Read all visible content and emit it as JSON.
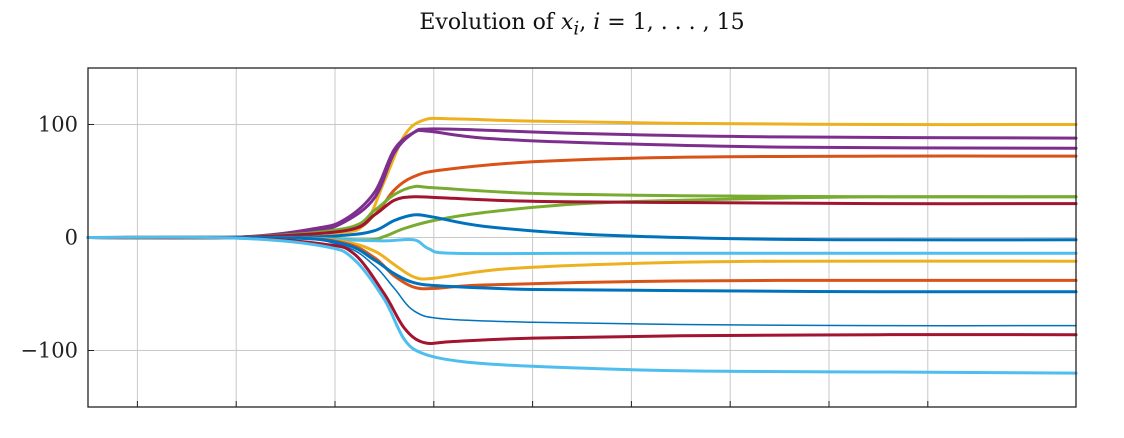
{
  "chart_data": {
    "type": "line",
    "title": "Evolution of x_i, i = 1, …, 15",
    "title_parts": {
      "prefix": "Evolution of ",
      "var": "x",
      "sub": "i",
      "sep": ", ",
      "range_var": "i",
      "range_rest": " = 1, . . . , 15"
    },
    "xlabel": "",
    "ylabel": "",
    "xlim": [
      0,
      10
    ],
    "ylim": [
      -150,
      150
    ],
    "yticks": [
      100,
      0,
      -100
    ],
    "ytick_labels": [
      "100",
      "0",
      "−100"
    ],
    "xticks": [
      0.5,
      1.5,
      2.5,
      3.5,
      4.5,
      5.5,
      6.5,
      7.5,
      8.5
    ],
    "xtick_labels": [],
    "grid": true,
    "legend": "none",
    "series": [
      {
        "color": "#EDB120",
        "width": 3,
        "values": [
          [
            0,
            0
          ],
          [
            1.5,
            0.3
          ],
          [
            2.5,
            4
          ],
          [
            2.8,
            12
          ],
          [
            3.0,
            50
          ],
          [
            3.2,
            90
          ],
          [
            3.4,
            104
          ],
          [
            3.7,
            105
          ],
          [
            4.5,
            103
          ],
          [
            6,
            101
          ],
          [
            8,
            100
          ],
          [
            10,
            100
          ]
        ]
      },
      {
        "color": "#7E2F8E",
        "width": 3,
        "values": [
          [
            0,
            0
          ],
          [
            1.5,
            0.3
          ],
          [
            2.3,
            6
          ],
          [
            2.6,
            14
          ],
          [
            2.9,
            35
          ],
          [
            3.1,
            75
          ],
          [
            3.3,
            93
          ],
          [
            3.45,
            96
          ],
          [
            4,
            95
          ],
          [
            5,
            92
          ],
          [
            7,
            89
          ],
          [
            10,
            88
          ]
        ]
      },
      {
        "color": "#7E2F8E",
        "width": 3,
        "values": [
          [
            0,
            0
          ],
          [
            1.5,
            0.3
          ],
          [
            2.3,
            8
          ],
          [
            2.6,
            16
          ],
          [
            2.9,
            40
          ],
          [
            3.1,
            78
          ],
          [
            3.3,
            93
          ],
          [
            3.45,
            94
          ],
          [
            4,
            88
          ],
          [
            5,
            84
          ],
          [
            7,
            80
          ],
          [
            10,
            79
          ]
        ]
      },
      {
        "color": "#D95319",
        "width": 3,
        "values": [
          [
            0,
            0
          ],
          [
            1.5,
            0.2
          ],
          [
            2.6,
            6
          ],
          [
            2.9,
            20
          ],
          [
            3.1,
            42
          ],
          [
            3.3,
            54
          ],
          [
            3.6,
            60
          ],
          [
            4.5,
            67
          ],
          [
            6,
            71
          ],
          [
            8,
            72
          ],
          [
            10,
            72
          ]
        ]
      },
      {
        "color": "#77AC30",
        "width": 3,
        "values": [
          [
            0,
            0
          ],
          [
            1.5,
            0.2
          ],
          [
            2.6,
            8
          ],
          [
            2.9,
            24
          ],
          [
            3.1,
            38
          ],
          [
            3.3,
            45
          ],
          [
            3.5,
            44
          ],
          [
            4.5,
            39
          ],
          [
            6,
            37
          ],
          [
            8,
            36
          ],
          [
            10,
            36
          ]
        ]
      },
      {
        "color": "#77AC30",
        "width": 3,
        "values": [
          [
            0,
            0
          ],
          [
            2.0,
            0.1
          ],
          [
            2.8,
            -2
          ],
          [
            3.0,
            1
          ],
          [
            3.2,
            8
          ],
          [
            3.5,
            15
          ],
          [
            4,
            22
          ],
          [
            5,
            30
          ],
          [
            6.5,
            34
          ],
          [
            8,
            36
          ],
          [
            10,
            36
          ]
        ]
      },
      {
        "color": "#A2142F",
        "width": 3,
        "values": [
          [
            0,
            0
          ],
          [
            1.5,
            0.2
          ],
          [
            2.6,
            6
          ],
          [
            2.9,
            20
          ],
          [
            3.1,
            33
          ],
          [
            3.3,
            36
          ],
          [
            3.6,
            35
          ],
          [
            4.5,
            32
          ],
          [
            6,
            31
          ],
          [
            8,
            30
          ],
          [
            10,
            30
          ]
        ]
      },
      {
        "color": "#0072BD",
        "width": 3,
        "values": [
          [
            0,
            0
          ],
          [
            2.0,
            0.2
          ],
          [
            2.6,
            2
          ],
          [
            2.9,
            6
          ],
          [
            3.1,
            15
          ],
          [
            3.3,
            20
          ],
          [
            3.5,
            18
          ],
          [
            4,
            10
          ],
          [
            5,
            3
          ],
          [
            6.5,
            -1
          ],
          [
            8,
            -2
          ],
          [
            10,
            -2
          ]
        ]
      },
      {
        "color": "#4DBEEE",
        "width": 3,
        "values": [
          [
            0,
            0
          ],
          [
            2.0,
            -0.2
          ],
          [
            2.6,
            -2
          ],
          [
            3.0,
            -3
          ],
          [
            3.3,
            -2
          ],
          [
            3.45,
            -10
          ],
          [
            3.7,
            -14
          ],
          [
            5,
            -14
          ],
          [
            7,
            -14
          ],
          [
            10,
            -14
          ]
        ]
      },
      {
        "color": "#EDB120",
        "width": 3,
        "values": [
          [
            0,
            0
          ],
          [
            2.0,
            -0.2
          ],
          [
            2.6,
            -4
          ],
          [
            2.9,
            -12
          ],
          [
            3.1,
            -24
          ],
          [
            3.3,
            -35
          ],
          [
            3.5,
            -36
          ],
          [
            4.2,
            -28
          ],
          [
            5.5,
            -23
          ],
          [
            7,
            -21
          ],
          [
            10,
            -21
          ]
        ]
      },
      {
        "color": "#D95319",
        "width": 3,
        "values": [
          [
            0,
            0
          ],
          [
            2.0,
            -0.3
          ],
          [
            2.6,
            -5
          ],
          [
            2.9,
            -18
          ],
          [
            3.1,
            -34
          ],
          [
            3.3,
            -44
          ],
          [
            3.5,
            -45
          ],
          [
            4,
            -42
          ],
          [
            5.5,
            -39
          ],
          [
            7,
            -38
          ],
          [
            10,
            -38
          ]
        ]
      },
      {
        "color": "#0072BD",
        "width": 3,
        "values": [
          [
            0,
            0
          ],
          [
            2.0,
            -0.3
          ],
          [
            2.6,
            -6
          ],
          [
            2.9,
            -20
          ],
          [
            3.1,
            -32
          ],
          [
            3.3,
            -40
          ],
          [
            3.6,
            -43
          ],
          [
            4.5,
            -46
          ],
          [
            6,
            -47
          ],
          [
            8,
            -48
          ],
          [
            10,
            -48
          ]
        ]
      },
      {
        "color": "#0072BD",
        "width": 1.5,
        "values": [
          [
            0,
            0
          ],
          [
            2.0,
            -0.4
          ],
          [
            2.6,
            -8
          ],
          [
            2.9,
            -25
          ],
          [
            3.1,
            -45
          ],
          [
            3.3,
            -65
          ],
          [
            3.6,
            -72
          ],
          [
            4.5,
            -75
          ],
          [
            6,
            -77
          ],
          [
            8,
            -78
          ],
          [
            10,
            -78
          ]
        ]
      },
      {
        "color": "#A2142F",
        "width": 3,
        "values": [
          [
            0,
            0
          ],
          [
            1.5,
            -0.4
          ],
          [
            2.4,
            -6
          ],
          [
            2.7,
            -15
          ],
          [
            3.0,
            -50
          ],
          [
            3.2,
            -80
          ],
          [
            3.4,
            -93
          ],
          [
            3.7,
            -92
          ],
          [
            4.5,
            -89
          ],
          [
            6,
            -87
          ],
          [
            8,
            -86
          ],
          [
            10,
            -86
          ]
        ]
      },
      {
        "color": "#4DBEEE",
        "width": 3,
        "values": [
          [
            0,
            0
          ],
          [
            1.5,
            -0.5
          ],
          [
            2.4,
            -8
          ],
          [
            2.7,
            -20
          ],
          [
            3.0,
            -55
          ],
          [
            3.2,
            -90
          ],
          [
            3.4,
            -103
          ],
          [
            3.8,
            -110
          ],
          [
            4.5,
            -114
          ],
          [
            6,
            -118
          ],
          [
            8,
            -119
          ],
          [
            10,
            -120
          ]
        ]
      }
    ]
  }
}
